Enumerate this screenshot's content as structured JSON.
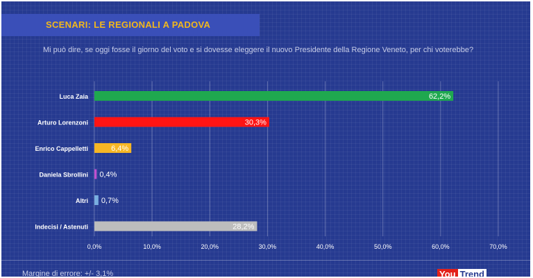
{
  "header": {
    "title": "SCENARI: LE REGIONALI A PADOVA",
    "question": "Mi può dire, se oggi fosse il giorno del voto e si dovesse eleggere il nuovo Presidente della Regione Veneto, per chi voterebbe?"
  },
  "footer": {
    "note": "Margine di errore: +/- 3,1%",
    "logo_you": "You",
    "logo_trend": "Trend"
  },
  "colors": {
    "background": "#263a90",
    "title": "#f2b81c"
  },
  "chart_data": {
    "type": "bar",
    "orientation": "horizontal",
    "title": "",
    "xlabel": "",
    "ylabel": "",
    "categories": [
      "Luca Zaia",
      "Arturo Lorenzoni",
      "Enrico Cappelletti",
      "Daniela Sbrollini",
      "Altri",
      "Indecisi / Astenuti"
    ],
    "values": [
      62.2,
      30.3,
      6.4,
      0.4,
      0.7,
      28.2
    ],
    "value_labels": [
      "62,2%",
      "30,3%",
      "6,4%",
      "0,4%",
      "0,7%",
      "28,2%"
    ],
    "colors": [
      "#1fa84f",
      "#ff1414",
      "#f6b625",
      "#c050d0",
      "#79aee0",
      "#bdbdbd"
    ],
    "xlim": [
      0,
      70
    ],
    "ticks": [
      0,
      10,
      20,
      30,
      40,
      50,
      60,
      70
    ],
    "tick_labels": [
      "0,0%",
      "10,0%",
      "20,0%",
      "30,0%",
      "40,0%",
      "50,0%",
      "60,0%",
      "70,0%"
    ],
    "grid": true
  }
}
